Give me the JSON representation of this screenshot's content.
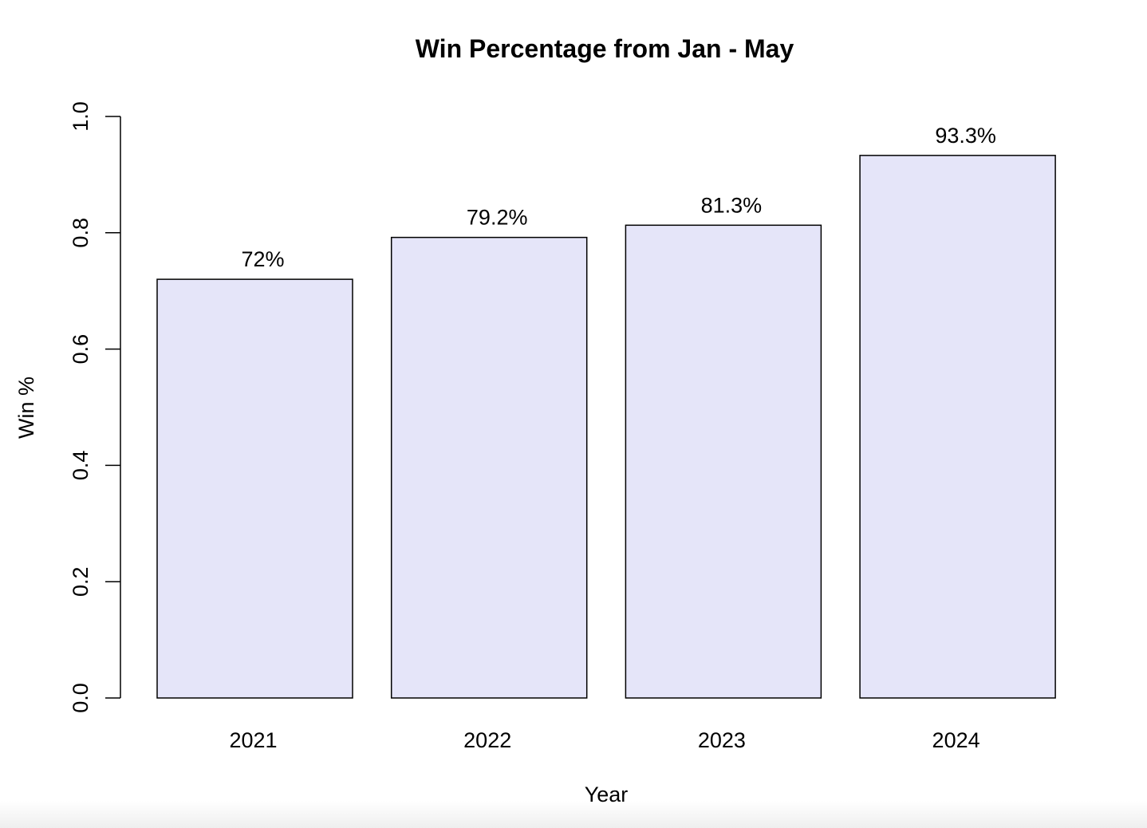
{
  "chart_data": {
    "type": "bar",
    "title": "Win Percentage from Jan - May",
    "xlabel": "Year",
    "ylabel": "Win %",
    "categories": [
      "2021",
      "2022",
      "2023",
      "2024"
    ],
    "values": [
      0.72,
      0.792,
      0.813,
      0.933
    ],
    "data_labels": [
      "72%",
      "79.2%",
      "81.3%",
      "93.3%"
    ],
    "ylim": [
      0,
      1.0
    ],
    "yticks": [
      0.0,
      0.2,
      0.4,
      0.6,
      0.8,
      1.0
    ],
    "ytick_labels": [
      "0.0",
      "0.2",
      "0.4",
      "0.6",
      "0.8",
      "1.0"
    ],
    "grid": false,
    "legend": "none",
    "colors": {
      "bar_fill": "#e5e5f9",
      "bar_stroke": "#000000",
      "axis": "#000000",
      "text": "#000000"
    }
  }
}
